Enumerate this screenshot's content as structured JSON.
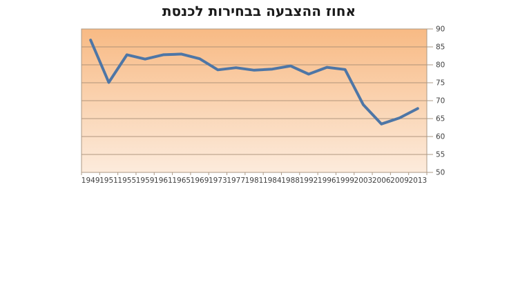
{
  "chart_data": {
    "type": "line",
    "title": "אחוז ההצבעה בבחירות לכנסת",
    "categories": [
      "1949",
      "1951",
      "1955",
      "1959",
      "1961",
      "1965",
      "1969",
      "1973",
      "1977",
      "1981",
      "1984",
      "1988",
      "1992",
      "1996",
      "1999",
      "2003",
      "2006",
      "2009",
      "2013"
    ],
    "values": [
      86.9,
      75.1,
      82.8,
      81.6,
      82.8,
      83.0,
      81.7,
      78.6,
      79.2,
      78.5,
      78.8,
      79.7,
      77.4,
      79.3,
      78.7,
      68.9,
      63.5,
      65.2,
      67.8
    ],
    "xlabel": "",
    "ylabel": "",
    "ylim": [
      50,
      90
    ],
    "yticks": [
      50,
      55,
      60,
      65,
      70,
      75,
      80,
      85,
      90
    ],
    "grid": true,
    "legend": false,
    "y_axis_side": "right",
    "colors": {
      "line": "#4e76a6",
      "plot_bg_top": "#f8ba84",
      "plot_bg_bottom": "#fcebdc",
      "gridline": "#a38a72",
      "plot_border": "#ab9884",
      "axis_text": "#3f3f3f",
      "title_text": "#1a1a1a",
      "page_bg": "#ffffff"
    }
  }
}
